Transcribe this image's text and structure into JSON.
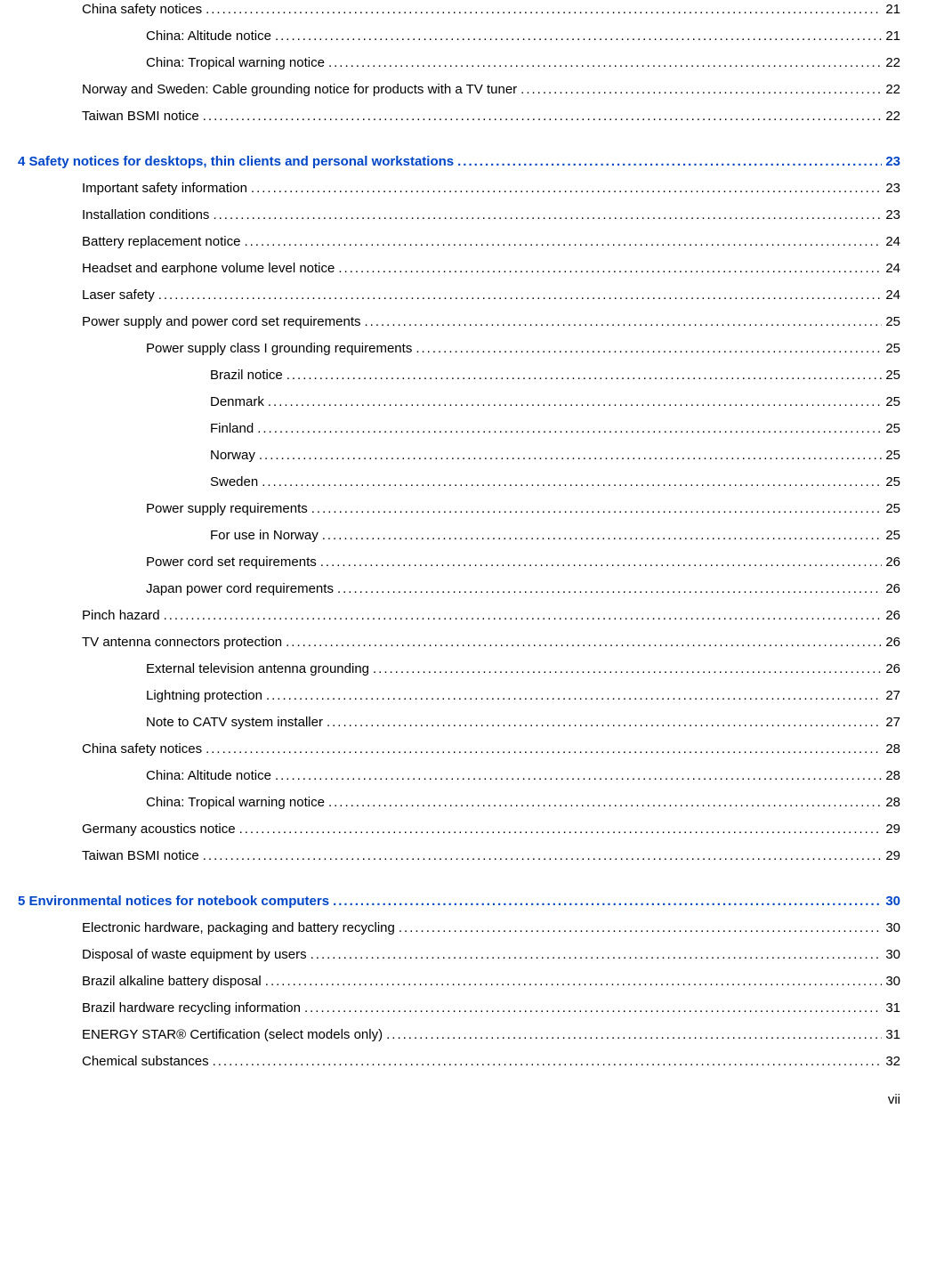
{
  "entries": [
    {
      "text": "China safety notices",
      "page": "21",
      "indent": 1,
      "chapter": false
    },
    {
      "text": "China: Altitude notice",
      "page": "21",
      "indent": 2,
      "chapter": false
    },
    {
      "text": "China: Tropical warning notice",
      "page": "22",
      "indent": 2,
      "chapter": false
    },
    {
      "text": "Norway and Sweden: Cable grounding notice for products with a TV tuner",
      "page": "22",
      "indent": 1,
      "chapter": false
    },
    {
      "text": "Taiwan BSMI notice",
      "page": "22",
      "indent": 1,
      "chapter": false
    },
    {
      "text": "4  Safety notices for desktops, thin clients and personal workstations",
      "page": "23",
      "indent": 0,
      "chapter": true
    },
    {
      "text": "Important safety information",
      "page": "23",
      "indent": 1,
      "chapter": false
    },
    {
      "text": "Installation conditions",
      "page": "23",
      "indent": 1,
      "chapter": false
    },
    {
      "text": "Battery replacement notice",
      "page": "24",
      "indent": 1,
      "chapter": false
    },
    {
      "text": "Headset and earphone volume level notice",
      "page": "24",
      "indent": 1,
      "chapter": false
    },
    {
      "text": "Laser safety",
      "page": "24",
      "indent": 1,
      "chapter": false
    },
    {
      "text": "Power supply and power cord set requirements",
      "page": "25",
      "indent": 1,
      "chapter": false
    },
    {
      "text": "Power supply class I grounding requirements",
      "page": "25",
      "indent": 2,
      "chapter": false
    },
    {
      "text": "Brazil notice",
      "page": "25",
      "indent": 3,
      "chapter": false
    },
    {
      "text": "Denmark",
      "page": "25",
      "indent": 3,
      "chapter": false
    },
    {
      "text": "Finland",
      "page": "25",
      "indent": 3,
      "chapter": false
    },
    {
      "text": "Norway",
      "page": "25",
      "indent": 3,
      "chapter": false
    },
    {
      "text": "Sweden",
      "page": "25",
      "indent": 3,
      "chapter": false
    },
    {
      "text": "Power supply requirements",
      "page": "25",
      "indent": 2,
      "chapter": false
    },
    {
      "text": "For use in Norway",
      "page": "25",
      "indent": 3,
      "chapter": false
    },
    {
      "text": "Power cord set requirements",
      "page": "26",
      "indent": 2,
      "chapter": false
    },
    {
      "text": "Japan power cord requirements",
      "page": "26",
      "indent": 2,
      "chapter": false
    },
    {
      "text": "Pinch hazard",
      "page": "26",
      "indent": 1,
      "chapter": false
    },
    {
      "text": "TV antenna connectors protection",
      "page": "26",
      "indent": 1,
      "chapter": false
    },
    {
      "text": "External television antenna grounding",
      "page": "26",
      "indent": 2,
      "chapter": false
    },
    {
      "text": "Lightning protection",
      "page": "27",
      "indent": 2,
      "chapter": false
    },
    {
      "text": "Note to CATV system installer",
      "page": "27",
      "indent": 2,
      "chapter": false
    },
    {
      "text": "China safety notices",
      "page": "28",
      "indent": 1,
      "chapter": false
    },
    {
      "text": "China: Altitude notice",
      "page": "28",
      "indent": 2,
      "chapter": false
    },
    {
      "text": "China: Tropical warning notice",
      "page": "28",
      "indent": 2,
      "chapter": false
    },
    {
      "text": "Germany acoustics notice",
      "page": "29",
      "indent": 1,
      "chapter": false
    },
    {
      "text": "Taiwan BSMI notice",
      "page": "29",
      "indent": 1,
      "chapter": false
    },
    {
      "text": "5  Environmental notices for notebook computers",
      "page": "30",
      "indent": 0,
      "chapter": true
    },
    {
      "text": "Electronic hardware, packaging and battery recycling",
      "page": "30",
      "indent": 1,
      "chapter": false
    },
    {
      "text": "Disposal of waste equipment by users",
      "page": "30",
      "indent": 1,
      "chapter": false
    },
    {
      "text": "Brazil alkaline battery disposal",
      "page": "30",
      "indent": 1,
      "chapter": false
    },
    {
      "text": "Brazil hardware recycling information",
      "page": "31",
      "indent": 1,
      "chapter": false
    },
    {
      "text": "ENERGY STAR® Certification (select models only)",
      "page": "31",
      "indent": 1,
      "chapter": false
    },
    {
      "text": "Chemical substances",
      "page": "32",
      "indent": 1,
      "chapter": false
    }
  ],
  "footer": "vii"
}
